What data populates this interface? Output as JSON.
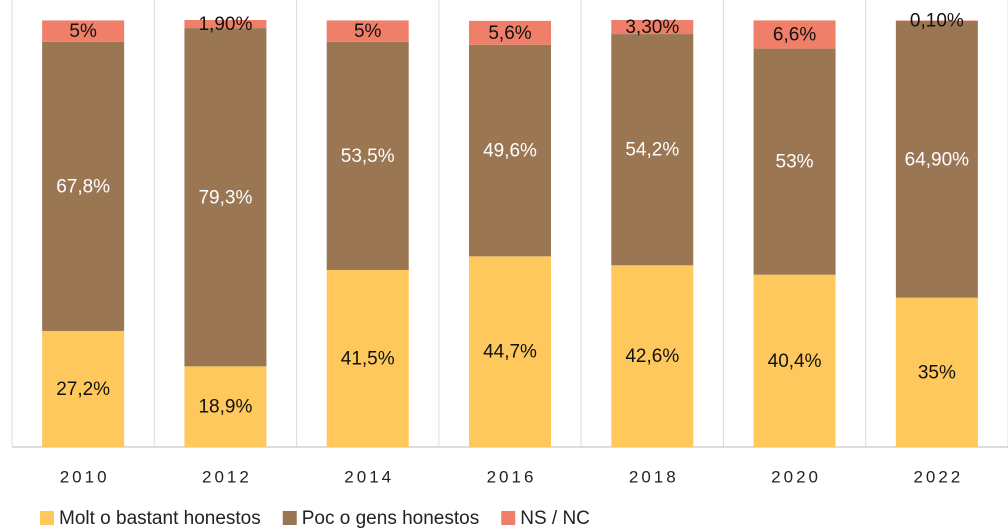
{
  "chart_data": {
    "type": "stacked_bar",
    "categories": [
      "2010",
      "2012",
      "2014",
      "2016",
      "2018",
      "2020",
      "2022"
    ],
    "series": [
      {
        "name": "Molt o bastant honestos",
        "color": "#ffc85c",
        "label_color": "#111111",
        "values": [
          27.2,
          18.9,
          41.5,
          44.7,
          42.6,
          40.4,
          35
        ],
        "value_labels": [
          "27,2%",
          "18,9%",
          "41,5%",
          "44,7%",
          "42,6%",
          "40,4%",
          "35%"
        ]
      },
      {
        "name": "Poc o gens honestos",
        "color": "#9b7653",
        "label_color": "#ffffff",
        "values": [
          67.8,
          79.3,
          53.5,
          49.6,
          54.2,
          53,
          64.9
        ],
        "value_labels": [
          "67,8%",
          "79,3%",
          "53,5%",
          "49,6%",
          "54,2%",
          "53%",
          "64,90%"
        ]
      },
      {
        "name": "NS / NC",
        "color": "#f07f6a",
        "label_color": "#111111",
        "values": [
          5,
          1.9,
          5,
          5.6,
          3.3,
          6.6,
          0.1
        ],
        "value_labels": [
          "5%",
          "1,90%",
          "5%",
          "5,6%",
          "3,30%",
          "6,6%",
          "0,10%"
        ]
      }
    ],
    "legend": "bottom-left"
  }
}
